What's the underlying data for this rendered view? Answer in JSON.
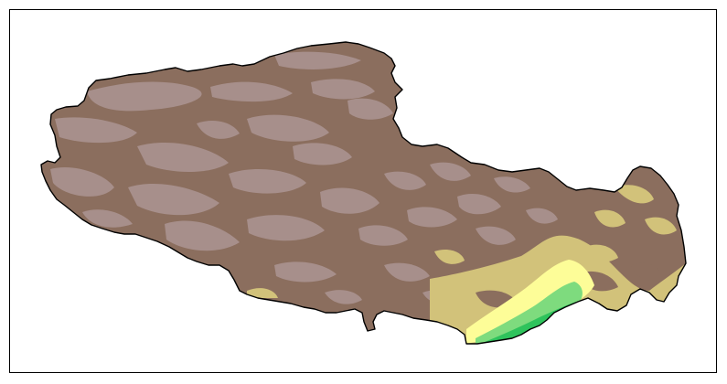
{
  "map": {
    "colors": {
      "background": "#ffffff",
      "frame": "#000000",
      "outline": "#000000",
      "dark_brown": "#8b6e5e",
      "light_mauve": "#a78f8b",
      "tan": "#d2c27a",
      "light_yellow": "#fdfd98",
      "light_green": "#7edb7e",
      "green": "#2ec35c",
      "dark_green": "#13a046"
    }
  }
}
